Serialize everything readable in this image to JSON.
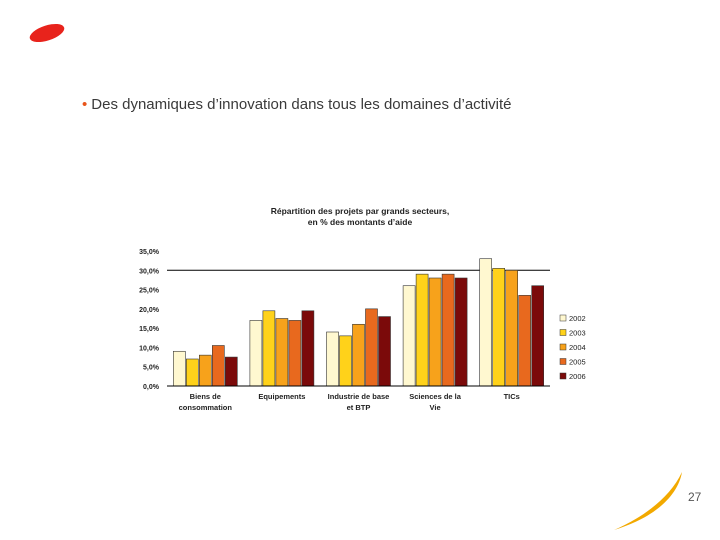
{
  "slide": {
    "bullet": "•",
    "text": "Des dynamiques d’innovation dans tous les domaines d’activité",
    "page_number": "27"
  },
  "colors": {
    "logo": "#e8231c",
    "deco": "#f2a900",
    "bullet": "#e8541a"
  },
  "chart_data": {
    "type": "bar",
    "title": [
      "Répartition des projets par grands secteurs,",
      "en % des montants d’aide"
    ],
    "categories": [
      [
        "Biens de",
        "consommation"
      ],
      [
        "Equipements"
      ],
      [
        "Industrie de base",
        "et BTP"
      ],
      [
        "Sciences de la",
        "Vie"
      ],
      [
        "TICs"
      ]
    ],
    "series": [
      {
        "name": "2002",
        "color": "#fff8d0",
        "values": [
          9.0,
          17.0,
          14.0,
          26.0,
          33.0
        ]
      },
      {
        "name": "2003",
        "color": "#ffd21a",
        "values": [
          7.0,
          19.5,
          13.0,
          29.0,
          30.5
        ]
      },
      {
        "name": "2004",
        "color": "#f7a21b",
        "values": [
          8.0,
          17.5,
          16.0,
          28.0,
          30.0
        ]
      },
      {
        "name": "2005",
        "color": "#e8691e",
        "values": [
          10.5,
          17.0,
          20.0,
          29.0,
          23.5
        ]
      },
      {
        "name": "2006",
        "color": "#7b0a0a",
        "values": [
          7.5,
          19.5,
          18.0,
          28.0,
          26.0
        ]
      }
    ],
    "ylim": [
      0,
      35
    ],
    "yticks": [
      0,
      5,
      10,
      15,
      20,
      25,
      30,
      35
    ],
    "ytick_labels": [
      "0,0%",
      "5,0%",
      "10,0%",
      "15,0%",
      "20,0%",
      "25,0%",
      "30,0%",
      "35,0%"
    ],
    "gridlines": [
      30
    ],
    "legend": "right"
  }
}
